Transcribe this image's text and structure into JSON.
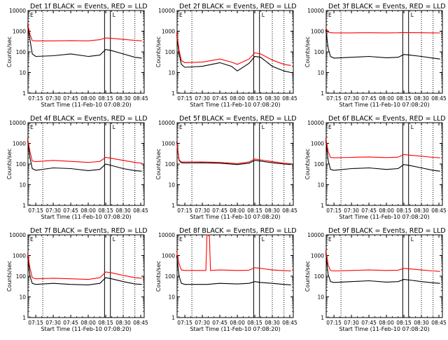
{
  "figure": {
    "xlabel": "Start Time (11-Feb-10 07:08:20)",
    "ylabel": "Counts/sec",
    "x_tick_labels": [
      "07:15",
      "07:30",
      "07:45",
      "08:00",
      "08:15",
      "08:30",
      "08:45"
    ],
    "y_tick_labels": [
      "1",
      "10",
      "100",
      "1000",
      "10000"
    ],
    "marker_labels": {
      "left": "E",
      "right": "L"
    },
    "colors": {
      "events": "#000000",
      "lld": "#ff0000",
      "axes": "#000000",
      "background": "#ffffff"
    }
  },
  "chart_data": [
    {
      "type": "line",
      "title": "Det 1f BLACK = Events, RED = LLD",
      "xlabel": "Start Time (11-Feb-10 07:08:20)",
      "ylabel": "Counts/sec",
      "yscale": "log",
      "xlim": [
        "07:08:20",
        "08:48:00"
      ],
      "ylim": [
        1,
        10000
      ],
      "dotted_lines": [
        "07:21",
        "08:30",
        "08:40"
      ],
      "solid_lines": [
        "08:14",
        "08:19"
      ],
      "series": [
        {
          "name": "Events",
          "color": "#000000",
          "x": [
            "07:08",
            "07:10",
            "07:12",
            "07:15",
            "07:30",
            "07:45",
            "08:00",
            "08:10",
            "08:15",
            "08:20",
            "08:30",
            "08:40",
            "08:46"
          ],
          "values": [
            2000,
            400,
            80,
            60,
            65,
            80,
            60,
            70,
            130,
            115,
            80,
            55,
            50
          ]
        },
        {
          "name": "LLD",
          "color": "#ff0000",
          "x": [
            "07:08",
            "07:10",
            "07:12",
            "07:15",
            "07:30",
            "07:45",
            "08:00",
            "08:10",
            "08:15",
            "08:20",
            "08:30",
            "08:40",
            "08:46"
          ],
          "values": [
            2400,
            700,
            350,
            340,
            340,
            350,
            340,
            390,
            470,
            450,
            400,
            360,
            340
          ]
        }
      ]
    },
    {
      "type": "line",
      "title": "Det 2f BLACK = Events, RED = LLD",
      "xlabel": "Start Time (11-Feb-10 07:08:20)",
      "ylabel": "Counts/sec",
      "yscale": "log",
      "xlim": [
        "07:08:20",
        "08:48:00"
      ],
      "ylim": [
        1,
        10000
      ],
      "dotted_lines": [
        "07:21",
        "08:30",
        "08:40"
      ],
      "solid_lines": [
        "08:14",
        "08:19"
      ],
      "series": [
        {
          "name": "Events",
          "color": "#000000",
          "x": [
            "07:08",
            "07:10",
            "07:12",
            "07:15",
            "07:30",
            "07:45",
            "07:55",
            "08:00",
            "08:10",
            "08:15",
            "08:20",
            "08:30",
            "08:40",
            "08:46"
          ],
          "values": [
            700,
            80,
            25,
            18,
            20,
            30,
            20,
            12,
            28,
            60,
            55,
            20,
            12,
            10
          ]
        },
        {
          "name": "LLD",
          "color": "#ff0000",
          "x": [
            "07:08",
            "07:10",
            "07:12",
            "07:15",
            "07:30",
            "07:45",
            "07:55",
            "08:00",
            "08:10",
            "08:15",
            "08:20",
            "08:30",
            "08:40",
            "08:46"
          ],
          "values": [
            900,
            120,
            38,
            30,
            32,
            45,
            32,
            25,
            45,
            90,
            80,
            40,
            25,
            22
          ]
        }
      ]
    },
    {
      "type": "line",
      "title": "Det 3f BLACK = Events, RED = LLD",
      "xlabel": "Start Time (11-Feb-10 07:08:20)",
      "ylabel": "Counts/sec",
      "yscale": "log",
      "xlim": [
        "07:08:20",
        "08:48:00"
      ],
      "ylim": [
        1,
        10000
      ],
      "dotted_lines": [
        "07:21",
        "08:30",
        "08:40"
      ],
      "solid_lines": [
        "08:14",
        "08:19"
      ],
      "series": [
        {
          "name": "Events",
          "color": "#000000",
          "x": [
            "07:08",
            "07:10",
            "07:12",
            "07:15",
            "07:30",
            "07:45",
            "08:00",
            "08:10",
            "08:15",
            "08:20",
            "08:30",
            "08:40",
            "08:46"
          ],
          "values": [
            1200,
            150,
            60,
            50,
            55,
            60,
            52,
            55,
            75,
            70,
            60,
            50,
            45
          ]
        },
        {
          "name": "LLD",
          "color": "#ff0000",
          "x": [
            "07:08",
            "07:10",
            "07:12",
            "07:15",
            "07:30",
            "07:45",
            "08:00",
            "08:10",
            "08:15",
            "08:20",
            "08:30",
            "08:40",
            "08:46"
          ],
          "values": [
            1500,
            900,
            850,
            830,
            830,
            840,
            830,
            840,
            860,
            850,
            840,
            830,
            820
          ]
        }
      ]
    },
    {
      "type": "line",
      "title": "Det 4f BLACK = Events, RED = LLD",
      "xlabel": "Start Time (11-Feb-10 07:08:20)",
      "ylabel": "Counts/sec",
      "yscale": "log",
      "xlim": [
        "07:08:20",
        "08:48:00"
      ],
      "ylim": [
        1,
        10000
      ],
      "dotted_lines": [
        "07:21",
        "08:30",
        "08:40"
      ],
      "solid_lines": [
        "08:14",
        "08:19"
      ],
      "series": [
        {
          "name": "Events",
          "color": "#000000",
          "x": [
            "07:08",
            "07:10",
            "07:12",
            "07:15",
            "07:30",
            "07:45",
            "08:00",
            "08:10",
            "08:15",
            "08:20",
            "08:30",
            "08:40",
            "08:46"
          ],
          "values": [
            1500,
            200,
            60,
            50,
            65,
            60,
            48,
            55,
            100,
            85,
            60,
            48,
            45
          ]
        },
        {
          "name": "LLD",
          "color": "#ff0000",
          "x": [
            "07:08",
            "07:10",
            "07:12",
            "07:15",
            "07:30",
            "07:45",
            "08:00",
            "08:10",
            "08:15",
            "08:20",
            "08:30",
            "08:40",
            "08:46"
          ],
          "values": [
            1800,
            400,
            140,
            130,
            150,
            135,
            120,
            135,
            210,
            190,
            150,
            120,
            110
          ]
        }
      ]
    },
    {
      "type": "line",
      "title": "Det 5f BLACK = Events, RED = LLD",
      "xlabel": "Start Time (11-Feb-10 07:08:20)",
      "ylabel": "Counts/sec",
      "yscale": "log",
      "xlim": [
        "07:08:20",
        "08:48:00"
      ],
      "ylim": [
        1,
        10000
      ],
      "dotted_lines": [
        "07:21",
        "08:30",
        "08:40"
      ],
      "solid_lines": [
        "08:14",
        "08:19"
      ],
      "series": [
        {
          "name": "Events",
          "color": "#000000",
          "x": [
            "07:08",
            "07:10",
            "07:12",
            "07:15",
            "07:30",
            "07:45",
            "08:00",
            "08:10",
            "08:15",
            "08:20",
            "08:30",
            "08:40",
            "08:46"
          ],
          "values": [
            1200,
            150,
            115,
            112,
            115,
            110,
            95,
            110,
            150,
            140,
            115,
            100,
            95
          ]
        },
        {
          "name": "LLD",
          "color": "#ff0000",
          "x": [
            "07:08",
            "07:10",
            "07:12",
            "07:15",
            "07:30",
            "07:45",
            "08:00",
            "08:10",
            "08:15",
            "08:20",
            "08:30",
            "08:40",
            "08:46"
          ],
          "values": [
            1100,
            160,
            125,
            125,
            125,
            120,
            105,
            125,
            175,
            160,
            130,
            110,
            105
          ]
        }
      ]
    },
    {
      "type": "line",
      "title": "Det 6f BLACK = Events, RED = LLD",
      "xlabel": "Start Time (11-Feb-10 07:08:20)",
      "ylabel": "Counts/sec",
      "yscale": "log",
      "xlim": [
        "07:08:20",
        "08:48:00"
      ],
      "ylim": [
        1,
        10000
      ],
      "dotted_lines": [
        "07:21",
        "08:30",
        "08:40"
      ],
      "solid_lines": [
        "08:14",
        "08:19"
      ],
      "series": [
        {
          "name": "Events",
          "color": "#000000",
          "x": [
            "07:08",
            "07:10",
            "07:12",
            "07:15",
            "07:30",
            "07:45",
            "08:00",
            "08:10",
            "08:15",
            "08:20",
            "08:30",
            "08:40",
            "08:46"
          ],
          "values": [
            1500,
            150,
            55,
            50,
            60,
            65,
            55,
            60,
            95,
            85,
            65,
            50,
            45
          ]
        },
        {
          "name": "LLD",
          "color": "#ff0000",
          "x": [
            "07:08",
            "07:10",
            "07:12",
            "07:15",
            "07:30",
            "07:45",
            "08:00",
            "08:10",
            "08:15",
            "08:20",
            "08:30",
            "08:40",
            "08:46"
          ],
          "values": [
            1800,
            400,
            210,
            200,
            210,
            220,
            205,
            215,
            290,
            270,
            240,
            210,
            200
          ]
        }
      ]
    },
    {
      "type": "line",
      "title": "Det 7f BLACK = Events, RED = LLD",
      "xlabel": "Start Time (11-Feb-10 07:08:20)",
      "ylabel": "Counts/sec",
      "yscale": "log",
      "xlim": [
        "07:08:20",
        "08:48:00"
      ],
      "ylim": [
        1,
        10000
      ],
      "dotted_lines": [
        "07:21",
        "08:30",
        "08:40"
      ],
      "solid_lines": [
        "08:14",
        "08:19"
      ],
      "series": [
        {
          "name": "Events",
          "color": "#000000",
          "x": [
            "07:08",
            "07:10",
            "07:12",
            "07:15",
            "07:30",
            "07:45",
            "08:00",
            "08:10",
            "08:15",
            "08:20",
            "08:30",
            "08:40",
            "08:46"
          ],
          "values": [
            1000,
            100,
            45,
            40,
            45,
            40,
            38,
            45,
            85,
            75,
            55,
            42,
            40
          ]
        },
        {
          "name": "LLD",
          "color": "#ff0000",
          "x": [
            "07:08",
            "07:10",
            "07:12",
            "07:15",
            "07:30",
            "07:45",
            "08:00",
            "08:10",
            "08:15",
            "08:20",
            "08:30",
            "08:40",
            "08:46"
          ],
          "values": [
            1300,
            250,
            85,
            75,
            80,
            75,
            70,
            85,
            160,
            145,
            110,
            85,
            80
          ]
        }
      ]
    },
    {
      "type": "line",
      "title": "Det 8f BLACK = Events, RED = LLD",
      "xlabel": "Start Time (11-Feb-10 07:08:20)",
      "ylabel": "Counts/sec",
      "yscale": "log",
      "xlim": [
        "07:08:20",
        "08:48:00"
      ],
      "ylim": [
        1,
        10000
      ],
      "dotted_lines": [
        "07:21",
        "08:30",
        "08:40"
      ],
      "solid_lines": [
        "08:14",
        "08:19"
      ],
      "series": [
        {
          "name": "Events",
          "color": "#000000",
          "x": [
            "07:08",
            "07:10",
            "07:12",
            "07:15",
            "07:30",
            "07:34",
            "07:45",
            "08:00",
            "08:10",
            "08:15",
            "08:20",
            "08:30",
            "08:40",
            "08:46"
          ],
          "values": [
            1000,
            100,
            45,
            40,
            40,
            40,
            45,
            42,
            45,
            55,
            50,
            45,
            40,
            38
          ]
        },
        {
          "name": "LLD",
          "color": "#ff0000",
          "x": [
            "07:08",
            "07:10",
            "07:12",
            "07:15",
            "07:30",
            "07:33",
            "07:34",
            "07:36",
            "07:37",
            "07:45",
            "08:00",
            "08:10",
            "08:15",
            "08:20",
            "08:30",
            "08:40",
            "08:46"
          ],
          "values": [
            1600,
            400,
            200,
            190,
            190,
            190,
            10000,
            10000,
            190,
            200,
            190,
            195,
            260,
            240,
            200,
            185,
            180
          ]
        }
      ]
    },
    {
      "type": "line",
      "title": "Det 9f BLACK = Events, RED = LLD",
      "xlabel": "Start Time (11-Feb-10 07:08:20)",
      "ylabel": "Counts/sec",
      "yscale": "log",
      "xlim": [
        "07:08:20",
        "08:48:00"
      ],
      "ylim": [
        1,
        10000
      ],
      "dotted_lines": [
        "07:21",
        "08:30",
        "08:40"
      ],
      "solid_lines": [
        "08:14",
        "08:19"
      ],
      "series": [
        {
          "name": "Events",
          "color": "#000000",
          "x": [
            "07:08",
            "07:10",
            "07:12",
            "07:15",
            "07:30",
            "07:45",
            "08:00",
            "08:10",
            "08:15",
            "08:20",
            "08:30",
            "08:40",
            "08:46"
          ],
          "values": [
            1500,
            120,
            55,
            50,
            55,
            60,
            52,
            55,
            70,
            65,
            55,
            48,
            45
          ]
        },
        {
          "name": "LLD",
          "color": "#ff0000",
          "x": [
            "07:08",
            "07:10",
            "07:12",
            "07:15",
            "07:30",
            "07:45",
            "08:00",
            "08:10",
            "08:15",
            "08:20",
            "08:30",
            "08:40",
            "08:46"
          ],
          "values": [
            1800,
            350,
            190,
            180,
            190,
            200,
            190,
            195,
            240,
            225,
            200,
            180,
            170
          ]
        }
      ]
    }
  ]
}
